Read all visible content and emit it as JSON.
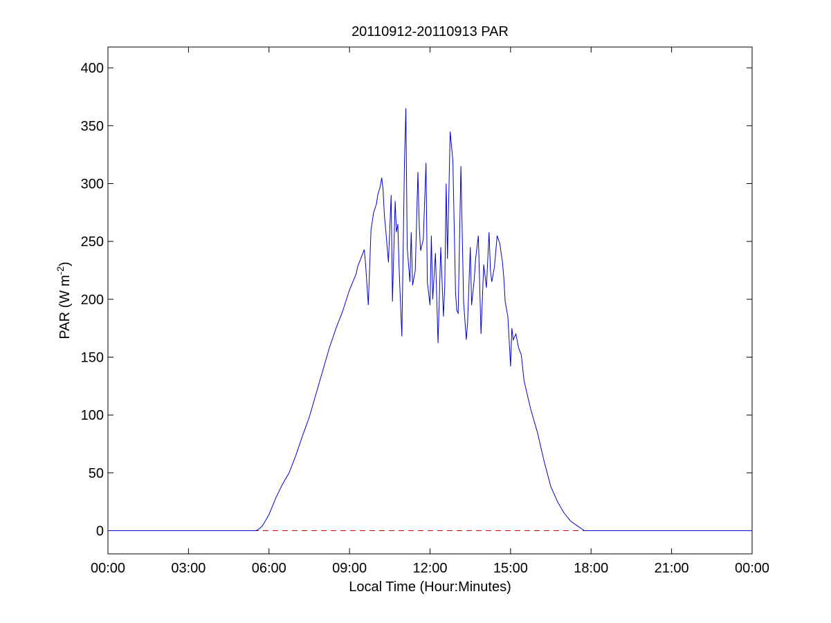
{
  "chart_data": {
    "type": "line",
    "title": "20110912-20110913 PAR",
    "xlabel": "Local Time (Hour:Minutes)",
    "ylabel": "PAR (W m",
    "ylabel_sup": "-2",
    "ylabel_close": ")",
    "xlim": [
      0,
      24
    ],
    "ylim": [
      -20,
      418
    ],
    "x_ticks": [
      0,
      3,
      6,
      9,
      12,
      15,
      18,
      21,
      24
    ],
    "x_tick_labels": [
      "00:00",
      "03:00",
      "06:00",
      "09:00",
      "12:00",
      "15:00",
      "18:00",
      "21:00",
      "00:00"
    ],
    "y_ticks": [
      0,
      50,
      100,
      150,
      200,
      250,
      300,
      350,
      400
    ],
    "y_tick_labels": [
      "0",
      "50",
      "100",
      "150",
      "200",
      "250",
      "300",
      "350",
      "400"
    ],
    "grid": false,
    "colors": {
      "series": "#0000cc",
      "baseline": "#cc0000"
    },
    "series": [
      {
        "x": [
          0,
          5.5,
          5.6,
          5.75,
          6.0,
          6.25,
          6.5,
          6.75,
          7.0,
          7.25,
          7.5,
          7.75,
          8.0,
          8.25,
          8.5,
          8.75,
          9.0,
          9.25,
          9.3,
          9.5,
          9.55,
          9.6,
          9.7,
          9.8,
          9.9,
          10.0,
          10.05,
          10.15,
          10.2,
          10.25,
          10.3,
          10.35,
          10.45,
          10.55,
          10.6,
          10.7,
          10.75,
          10.8,
          10.85,
          10.95,
          11.05,
          11.1,
          11.15,
          11.25,
          11.3,
          11.35,
          11.45,
          11.55,
          11.6,
          11.65,
          11.75,
          11.85,
          11.9,
          12.0,
          12.05,
          12.1,
          12.2,
          12.3,
          12.4,
          12.5,
          12.55,
          12.6,
          12.65,
          12.75,
          12.85,
          12.95,
          13.0,
          13.05,
          13.15,
          13.25,
          13.35,
          13.4,
          13.5,
          13.55,
          13.65,
          13.7,
          13.8,
          13.9,
          14.0,
          14.1,
          14.2,
          14.25,
          14.3,
          14.4,
          14.5,
          14.6,
          14.7,
          14.75,
          14.8,
          14.9,
          15.0,
          15.05,
          15.1,
          15.2,
          15.3,
          15.4,
          15.5,
          15.6,
          15.75,
          16.0,
          16.25,
          16.5,
          16.75,
          17.0,
          17.25,
          17.5,
          17.75,
          18.0,
          18.2,
          18.3,
          24.0
        ],
        "y": [
          0,
          0,
          1,
          4,
          14,
          28,
          40,
          50,
          65,
          82,
          98,
          118,
          138,
          158,
          175,
          190,
          208,
          222,
          228,
          240,
          243,
          230,
          195,
          260,
          275,
          282,
          290,
          298,
          305,
          295,
          272,
          260,
          232,
          290,
          198,
          285,
          258,
          265,
          225,
          168,
          320,
          365,
          245,
          215,
          258,
          212,
          225,
          310,
          262,
          242,
          252,
          318,
          215,
          195,
          255,
          200,
          240,
          162,
          245,
          185,
          212,
          300,
          235,
          345,
          320,
          205,
          190,
          188,
          315,
          198,
          165,
          180,
          245,
          195,
          218,
          235,
          255,
          170,
          230,
          210,
          258,
          225,
          215,
          228,
          255,
          248,
          232,
          218,
          198,
          185,
          142,
          175,
          165,
          170,
          158,
          152,
          130,
          120,
          105,
          85,
          60,
          38,
          25,
          15,
          8,
          4,
          0,
          0,
          0,
          0,
          0
        ]
      }
    ],
    "reference_line": {
      "y": 0,
      "style": "dashed"
    }
  }
}
